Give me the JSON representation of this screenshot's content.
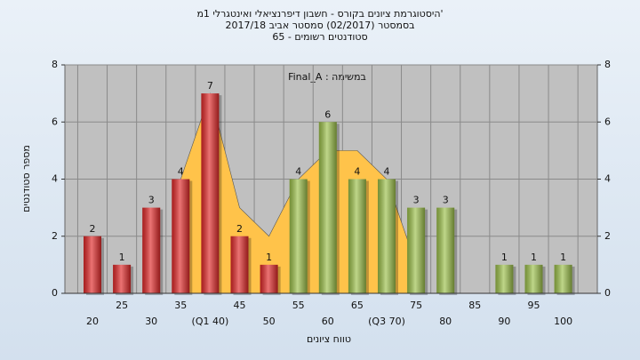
{
  "chart_data": {
    "type": "bar",
    "title": "היסטוגרמת ציונים בקורס - חשבון דיפרנציאלי ואינטגרלי 1מ'",
    "subtitle": "בסמסטר  (02/2017)  סמסטר אביב 2017/18",
    "subtitle2": "65 - סטודנטים רשומים",
    "annotation": "Final_A : במשימה",
    "xlabel": "טווח ציונים",
    "ylabel": "מספר סטודנטים",
    "categories": [
      "20",
      "25",
      "30",
      "35",
      "(Q1 40)",
      "45",
      "50",
      "55",
      "60",
      "65",
      "(Q3 70)",
      "75",
      "80",
      "85",
      "90",
      "95",
      "100"
    ],
    "values": [
      2,
      1,
      3,
      4,
      7,
      2,
      1,
      4,
      6,
      4,
      4,
      3,
      3,
      null,
      1,
      1,
      1
    ],
    "colors": [
      "#e02828",
      "#e02828",
      "#e02828",
      "#e02828",
      "#e02828",
      "#e02828",
      "#e02828",
      "#9cc04a",
      "#9cc04a",
      "#9cc04a",
      "#9cc04a",
      "#9cc04a",
      "#9cc04a",
      "#9cc04a",
      "#9cc04a",
      "#9cc04a",
      "#9cc04a"
    ],
    "area": {
      "color": "#ffc34a",
      "values": [
        null,
        null,
        null,
        4,
        7,
        3,
        2,
        4,
        5,
        5,
        4,
        1,
        null,
        null,
        null,
        null,
        null
      ]
    },
    "ylim": [
      0,
      8
    ],
    "yticks": [
      0,
      2,
      4,
      6,
      8
    ],
    "y2lim": [
      0,
      8
    ],
    "y2ticks": [
      0,
      2,
      4,
      6,
      8
    ],
    "grid": true
  }
}
